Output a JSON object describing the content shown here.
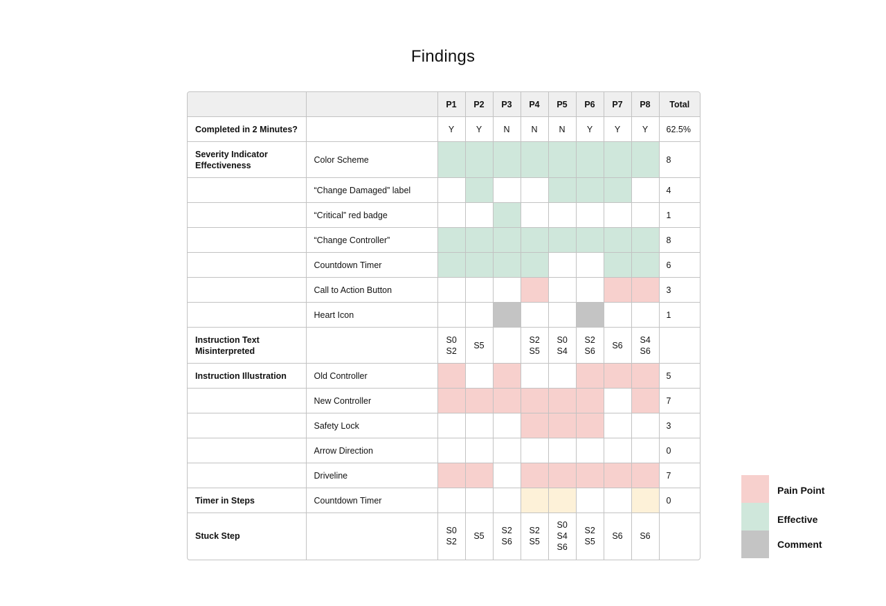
{
  "title": "Findings",
  "table": {
    "headers": [
      "",
      "",
      "P1",
      "P2",
      "P3",
      "P4",
      "P5",
      "P6",
      "P7",
      "P8",
      "Total"
    ],
    "rows": [
      {
        "category": "Completed in 2 Minutes?",
        "item": "",
        "cells": [
          "Y",
          "Y",
          "N",
          "N",
          "N",
          "Y",
          "Y",
          "Y"
        ],
        "cell_types": [
          "",
          "",
          "",
          "",
          "",
          "",
          "",
          ""
        ],
        "total": "62.5%"
      },
      {
        "category": "Severity Indicator Effectiveness",
        "item": "Color Scheme",
        "cells": [
          "",
          "",
          "",
          "",
          "",
          "",
          "",
          ""
        ],
        "cell_types": [
          "effective",
          "effective",
          "effective",
          "effective",
          "effective",
          "effective",
          "effective",
          "effective"
        ],
        "total": "8"
      },
      {
        "category": "",
        "item": "“Change Damaged” label",
        "cells": [
          "",
          "",
          "",
          "",
          "",
          "",
          "",
          ""
        ],
        "cell_types": [
          "",
          "effective",
          "",
          "",
          "effective",
          "effective",
          "effective",
          ""
        ],
        "total": "4"
      },
      {
        "category": "",
        "item": "“Critical” red badge",
        "cells": [
          "",
          "",
          "",
          "",
          "",
          "",
          "",
          ""
        ],
        "cell_types": [
          "",
          "",
          "effective",
          "",
          "",
          "",
          "",
          ""
        ],
        "total": "1"
      },
      {
        "category": "",
        "item": "“Change Controller”",
        "cells": [
          "",
          "",
          "",
          "",
          "",
          "",
          "",
          ""
        ],
        "cell_types": [
          "effective",
          "effective",
          "effective",
          "effective",
          "effective",
          "effective",
          "effective",
          "effective"
        ],
        "total": "8"
      },
      {
        "category": "",
        "item": "Countdown Timer",
        "cells": [
          "",
          "",
          "",
          "",
          "",
          "",
          "",
          ""
        ],
        "cell_types": [
          "effective",
          "effective",
          "effective",
          "effective",
          "",
          "",
          "effective",
          "effective"
        ],
        "total": "6"
      },
      {
        "category": "",
        "item": "Call to Action Button",
        "cells": [
          "",
          "",
          "",
          "",
          "",
          "",
          "",
          ""
        ],
        "cell_types": [
          "",
          "",
          "",
          "pain",
          "",
          "",
          "pain",
          "pain"
        ],
        "total": "3"
      },
      {
        "category": "",
        "item": "Heart Icon",
        "cells": [
          "",
          "",
          "",
          "",
          "",
          "",
          "",
          ""
        ],
        "cell_types": [
          "",
          "",
          "comment",
          "",
          "",
          "comment",
          "",
          ""
        ],
        "total": "1"
      },
      {
        "category": "Instruction Text Misinterpreted",
        "item": "",
        "cells": [
          "S0\nS2",
          "S5",
          "",
          "S2\nS5",
          "S0\nS4",
          "S2\nS6",
          "S6",
          "S4\nS6"
        ],
        "cell_types": [
          "",
          "",
          "",
          "",
          "",
          "",
          "",
          ""
        ],
        "total": ""
      },
      {
        "category": "Instruction Illustration",
        "item": "Old Controller",
        "cells": [
          "",
          "",
          "",
          "",
          "",
          "",
          "",
          ""
        ],
        "cell_types": [
          "pain",
          "",
          "pain",
          "",
          "",
          "pain",
          "pain",
          "pain"
        ],
        "total": "5"
      },
      {
        "category": "",
        "item": "New Controller",
        "cells": [
          "",
          "",
          "",
          "",
          "",
          "",
          "",
          ""
        ],
        "cell_types": [
          "pain",
          "pain",
          "pain",
          "pain",
          "pain",
          "pain",
          "",
          "pain"
        ],
        "total": "7"
      },
      {
        "category": "",
        "item": "Safety Lock",
        "cells": [
          "",
          "",
          "",
          "",
          "",
          "",
          "",
          ""
        ],
        "cell_types": [
          "",
          "",
          "",
          "pain",
          "pain",
          "pain",
          "",
          ""
        ],
        "total": "3"
      },
      {
        "category": "",
        "item": "Arrow Direction",
        "cells": [
          "",
          "",
          "",
          "",
          "",
          "",
          "",
          ""
        ],
        "cell_types": [
          "",
          "",
          "",
          "",
          "",
          "",
          "",
          ""
        ],
        "total": "0"
      },
      {
        "category": "",
        "item": "Driveline",
        "cells": [
          "",
          "",
          "",
          "",
          "",
          "",
          "",
          ""
        ],
        "cell_types": [
          "pain",
          "pain",
          "",
          "pain",
          "pain",
          "pain",
          "pain",
          "pain"
        ],
        "total": "7"
      },
      {
        "category": "Timer in Steps",
        "item": "Countdown Timer",
        "cells": [
          "",
          "",
          "",
          "",
          "",
          "",
          "",
          ""
        ],
        "cell_types": [
          "",
          "",
          "",
          "timer",
          "timer",
          "",
          "",
          "timer"
        ],
        "total": "0"
      },
      {
        "category": "Stuck Step",
        "item": "",
        "cells": [
          "S0\nS2",
          "S5",
          "S2\nS6",
          "S2\nS5",
          "S0\nS4\nS6",
          "S2\nS5",
          "S6",
          "S6"
        ],
        "cell_types": [
          "",
          "",
          "",
          "",
          "",
          "",
          "",
          ""
        ],
        "total": ""
      }
    ]
  },
  "legend": [
    {
      "label": "Pain Point",
      "color": "#f7d0cd"
    },
    {
      "label": "Effective",
      "color": "#cfe7db"
    },
    {
      "label": "Comment",
      "color": "#c4c4c4"
    }
  ]
}
